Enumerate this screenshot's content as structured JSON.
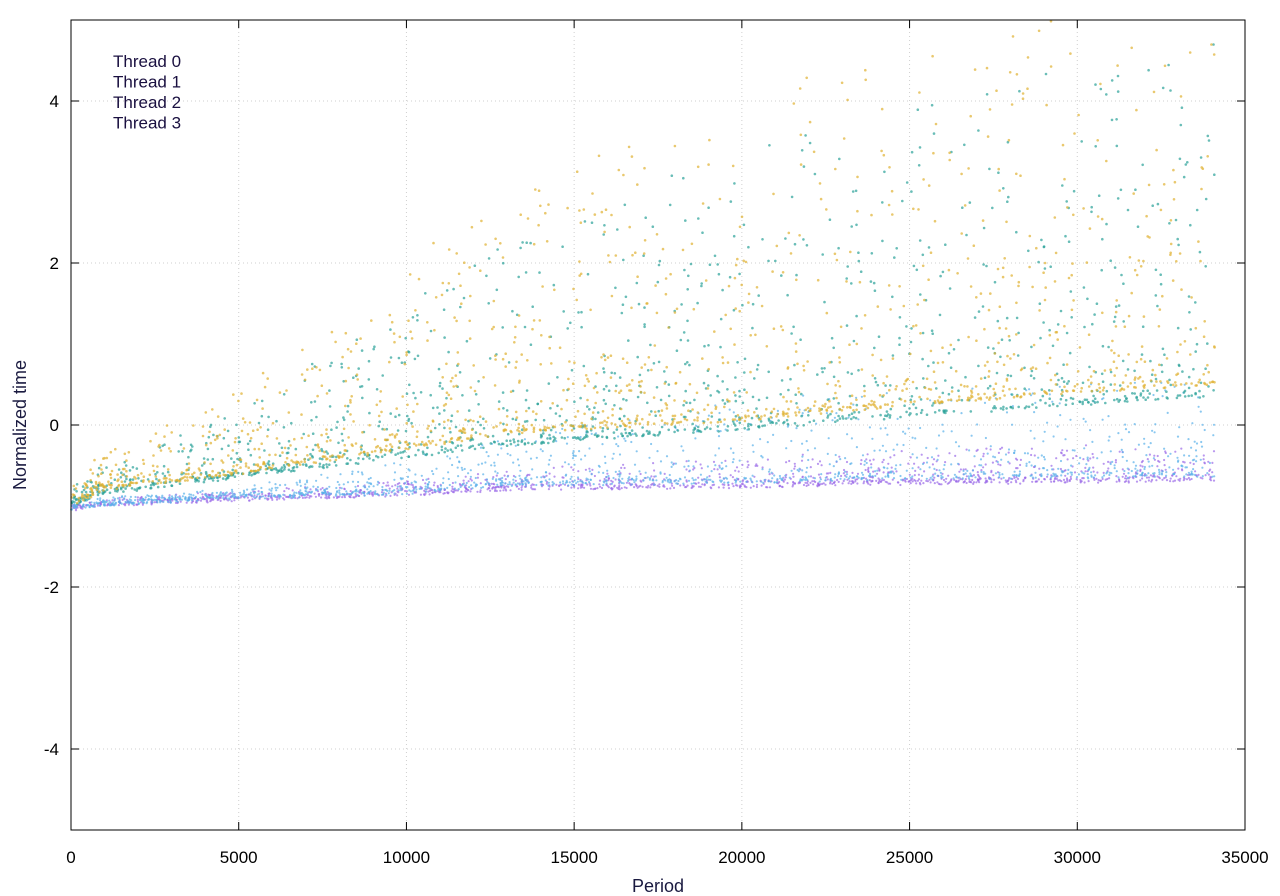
{
  "chart_data": {
    "type": "scatter",
    "title": "",
    "xlabel": "Period",
    "ylabel": "Normalized time",
    "xlim": [
      0,
      35000
    ],
    "ylim": [
      -5,
      5
    ],
    "x_ticks": [
      0,
      5000,
      10000,
      15000,
      20000,
      25000,
      30000,
      35000
    ],
    "x_tick_labels": [
      "0",
      "5000",
      "10000",
      "15000",
      "20000",
      "25000",
      "30000",
      "35000"
    ],
    "y_ticks": [
      -4,
      -2,
      0,
      2,
      4
    ],
    "y_tick_labels": [
      "-4",
      "-2",
      "0",
      "2",
      "4"
    ],
    "grid": true,
    "legend_position": "top-left",
    "x_range_of_data": [
      0,
      34100
    ],
    "series": [
      {
        "name": "Thread 0",
        "color": "#9b6be8",
        "baseline": [
          [
            0,
            -1.0
          ],
          [
            1000,
            -0.95
          ],
          [
            5000,
            -0.88
          ],
          [
            10000,
            -0.82
          ],
          [
            13000,
            -0.75
          ],
          [
            20000,
            -0.72
          ],
          [
            25000,
            -0.68
          ],
          [
            30000,
            -0.66
          ],
          [
            34100,
            -0.64
          ]
        ],
        "spread_upper": [
          [
            0,
            0.05
          ],
          [
            5000,
            0.08
          ],
          [
            13000,
            0.2
          ],
          [
            20000,
            0.35
          ],
          [
            34100,
            0.45
          ]
        ]
      },
      {
        "name": "Thread 1",
        "color": "#5ab0ea",
        "baseline": [
          [
            0,
            -1.0
          ],
          [
            1000,
            -0.94
          ],
          [
            5000,
            -0.86
          ],
          [
            10000,
            -0.8
          ],
          [
            13000,
            -0.7
          ],
          [
            20000,
            -0.66
          ],
          [
            25000,
            -0.62
          ],
          [
            30000,
            -0.6
          ],
          [
            34100,
            -0.58
          ]
        ],
        "spread_upper": [
          [
            0,
            0.05
          ],
          [
            5000,
            0.1
          ],
          [
            13000,
            0.6
          ],
          [
            20000,
            1.0
          ],
          [
            34100,
            1.2
          ]
        ]
      },
      {
        "name": "Thread 2",
        "color": "#2aa198",
        "baseline": [
          [
            0,
            -0.95
          ],
          [
            1000,
            -0.8
          ],
          [
            5000,
            -0.6
          ],
          [
            10000,
            -0.35
          ],
          [
            13000,
            -0.2
          ],
          [
            20000,
            0.0
          ],
          [
            25000,
            0.15
          ],
          [
            30000,
            0.3
          ],
          [
            34100,
            0.4
          ]
        ],
        "spread_upper": [
          [
            0,
            0.2
          ],
          [
            5000,
            0.8
          ],
          [
            13000,
            2.5
          ],
          [
            20000,
            3.5
          ],
          [
            34100,
            4.5
          ]
        ]
      },
      {
        "name": "Thread 3",
        "color": "#e0b030",
        "baseline": [
          [
            0,
            -0.95
          ],
          [
            1000,
            -0.75
          ],
          [
            5000,
            -0.55
          ],
          [
            10000,
            -0.25
          ],
          [
            13000,
            -0.05
          ],
          [
            20000,
            0.1
          ],
          [
            25000,
            0.3
          ],
          [
            30000,
            0.45
          ],
          [
            34100,
            0.55
          ]
        ],
        "spread_upper": [
          [
            0,
            0.3
          ],
          [
            5000,
            1.0
          ],
          [
            13000,
            3.0
          ],
          [
            20000,
            4.0
          ],
          [
            34100,
            5.0
          ]
        ]
      }
    ]
  }
}
